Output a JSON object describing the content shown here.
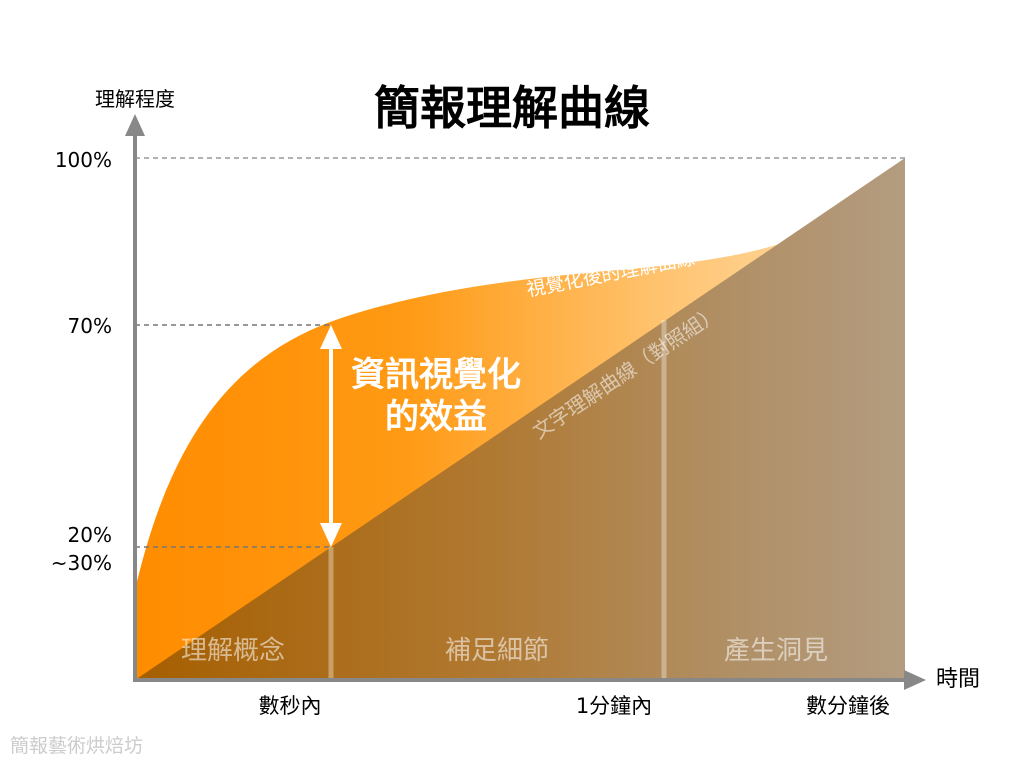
{
  "title": "簡報理解曲線",
  "y_axis_label": "理解程度",
  "x_axis_label": "時間",
  "y_ticks": [
    "100%",
    "70%",
    "20%",
    "~30%"
  ],
  "x_ticks": [
    "數秒內",
    "1分鐘內",
    "數分鐘後"
  ],
  "phases": [
    "理解概念",
    "補足細節",
    "產生洞見"
  ],
  "curve_labels": {
    "visual": "視覺化後的理解曲線",
    "text": "文字理解曲線（對照組）"
  },
  "annotation": {
    "line1": "資訊視覺化",
    "line2": "的效益"
  },
  "watermark": "簡報藝術烘焙坊",
  "colors": {
    "orange": "#FF8C00",
    "light_orange": "#FFD08A",
    "brown_dark": "#A65F00",
    "brown_light": "#B39C80",
    "axis": "#888888"
  }
}
